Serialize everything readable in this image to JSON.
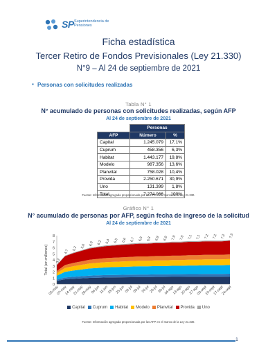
{
  "header": {
    "logo_text": "SP",
    "logo_line1": "Superintendencia de",
    "logo_line2": "Pensiones"
  },
  "titles": {
    "main": "Ficha estadística",
    "subtitle": "Tercer Retiro de Fondos Previsionales (Ley 21.330)",
    "issue": "N°9 – Al 24 de septiembre de 2021"
  },
  "section": {
    "bullet": "Personas con solicitudes realizadas"
  },
  "table": {
    "caption": "Tabla N° 1",
    "title": "N° acumulado de personas con solicitudes realizadas, según AFP",
    "date": "Al 24 de septiembre de 2021",
    "group_header": "Personas",
    "headers": [
      "AFP",
      "Número",
      "%"
    ],
    "rows": [
      {
        "afp": "Capital",
        "numero": "1.245.079",
        "pct": "17,1%"
      },
      {
        "afp": "Cuprum",
        "numero": "458.356",
        "pct": "6,3%"
      },
      {
        "afp": "Habitat",
        "numero": "1.443.177",
        "pct": "19,8%"
      },
      {
        "afp": "Modelo",
        "numero": "987.356",
        "pct": "13,6%"
      },
      {
        "afp": "Planvital",
        "numero": "758.028",
        "pct": "10,4%"
      },
      {
        "afp": "Provida",
        "numero": "2.250.671",
        "pct": "30,9%"
      },
      {
        "afp": "Uno",
        "numero": "131.399",
        "pct": "1,8%"
      },
      {
        "afp": "Total",
        "numero": "7.274.066",
        "pct": "100%"
      }
    ],
    "source": "Fuente: Información agregada proporcionada por las AFP en el marco de la Ley 21.330."
  },
  "figure": {
    "caption": "Gráfico N° 1",
    "title": "N° acumulado de personas por AFP, según fecha de ingreso de la solicitud",
    "date": "Al 24 de septiembre de 2021",
    "source": "Fuente: Información agregada proporcionada por las AFP en el marco de la Ley 21.330."
  },
  "chart_data": {
    "type": "area",
    "stacked": true,
    "ylabel": "Total (en millones)",
    "ylim": [
      0,
      8
    ],
    "yticks": [
      0,
      1,
      2,
      3,
      4,
      5,
      6,
      7,
      8
    ],
    "x": [
      "03-may",
      "07-may",
      "14-may",
      "21-may",
      "28-may",
      "04-jun",
      "11-jun",
      "18-jun",
      "25-jun",
      "02-jul",
      "09-jul",
      "16-jul",
      "23-jul",
      "30-jul",
      "06-ago",
      "13-ago",
      "20-ago",
      "27-ago",
      "03-sept",
      "10-sept",
      "17-sept",
      "24-sept"
    ],
    "total_labels": [
      "3,2",
      "4,7",
      "5,2",
      "5,6",
      "6,0",
      "6,2",
      "6,4",
      "6,5",
      "6,6",
      "6,7",
      "6,8",
      "6,8",
      "6,9",
      "6,9",
      "7,0",
      "7,0",
      "7,1",
      "7,1",
      "7,2",
      "7,2",
      "7,2",
      "7,3"
    ],
    "totals": [
      3.2,
      4.7,
      5.2,
      5.6,
      6.0,
      6.2,
      6.4,
      6.5,
      6.6,
      6.7,
      6.8,
      6.8,
      6.9,
      6.9,
      7.0,
      7.0,
      7.1,
      7.1,
      7.2,
      7.2,
      7.2,
      7.3
    ],
    "shares": {
      "Capital": 0.171,
      "Cuprum": 0.063,
      "Habitat": 0.198,
      "Modelo": 0.136,
      "Planvital": 0.104,
      "Provida": 0.309,
      "Uno": 0.018
    },
    "series": [
      {
        "name": "Capital",
        "color": "#1f3864"
      },
      {
        "name": "Cuprum",
        "color": "#2e75b6"
      },
      {
        "name": "Habitat",
        "color": "#00b0f0"
      },
      {
        "name": "Modelo",
        "color": "#ffc000"
      },
      {
        "name": "Planvital",
        "color": "#ed7d31"
      },
      {
        "name": "Provida",
        "color": "#c00000"
      },
      {
        "name": "Uno",
        "color": "#a6a6a6"
      }
    ],
    "grid": false,
    "legend": "bottom"
  },
  "footer": {
    "page_number": "1"
  }
}
